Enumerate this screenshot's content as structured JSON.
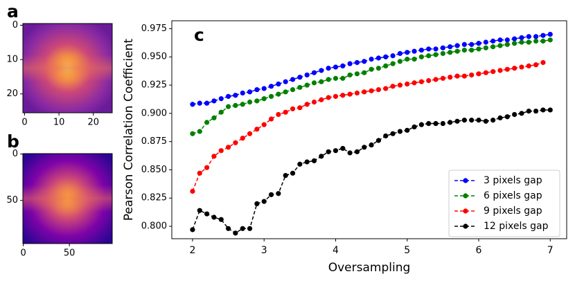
{
  "chart_data": [
    {
      "type": "image",
      "label": "a",
      "xlim": [
        -0.5,
        25.5
      ],
      "ylim": [
        25.5,
        -0.5
      ],
      "xticks": [
        0,
        10,
        20
      ],
      "yticks": [
        0,
        10,
        20
      ]
    },
    {
      "type": "image",
      "label": "b",
      "xlim": [
        -0.5,
        96.5
      ],
      "ylim": [
        96.5,
        -0.5
      ],
      "xticks": [
        0,
        50
      ],
      "yticks": [
        0,
        50
      ]
    },
    {
      "type": "line",
      "label": "c",
      "xlabel": "Oversampling",
      "ylabel": "Pearson Correlation Coefficient",
      "xlim": [
        1.71,
        7.23
      ],
      "ylim": [
        0.789,
        0.982
      ],
      "xticks": [
        2,
        3,
        4,
        5,
        6,
        7
      ],
      "yticks": [
        {
          "value": 0.8,
          "label": "0.800"
        },
        0.825,
        {
          "value": 0.85,
          "label": "0.850"
        },
        0.875,
        {
          "value": 0.9,
          "label": "0.900"
        },
        0.925,
        {
          "value": 0.95,
          "label": "0.950"
        },
        0.975
      ],
      "legend": "lower right",
      "x": [
        2,
        2.1,
        2.2,
        2.3,
        2.4,
        2.5,
        2.6,
        2.7,
        2.8,
        2.9,
        3,
        3.1,
        3.2,
        3.3,
        3.4,
        3.5,
        3.6,
        3.7,
        3.8,
        3.9,
        4,
        4.1,
        4.2,
        4.3,
        4.4,
        4.5,
        4.6,
        4.7,
        4.8,
        4.9,
        5,
        5.1,
        5.2,
        5.3,
        5.4,
        5.5,
        5.6,
        5.7,
        5.8,
        5.9,
        6,
        6.1,
        6.2,
        6.3,
        6.4,
        6.5,
        6.6,
        6.7,
        6.8,
        6.9,
        7
      ],
      "series": [
        {
          "name": "3 pixels gap",
          "color": "#0000ff",
          "values": [
            0.908,
            0.909,
            0.909,
            0.911,
            0.913,
            0.915,
            0.916,
            0.918,
            0.919,
            0.921,
            0.922,
            0.924,
            0.926,
            0.928,
            0.93,
            0.932,
            0.934,
            0.936,
            0.938,
            0.94,
            0.941,
            0.942,
            0.944,
            0.945,
            0.946,
            0.948,
            0.949,
            0.95,
            0.951,
            0.953,
            0.954,
            0.955,
            0.956,
            0.957,
            0.957,
            0.958,
            0.959,
            0.96,
            0.961,
            0.961,
            0.962,
            0.963,
            0.964,
            0.965,
            0.965,
            0.966,
            0.967,
            0.968,
            0.968,
            0.969,
            0.97
          ]
        },
        {
          "name": "6 pixels gap",
          "color": "#008000",
          "values": [
            0.882,
            0.884,
            0.892,
            0.896,
            0.901,
            0.906,
            0.907,
            0.908,
            0.91,
            0.911,
            0.913,
            0.915,
            0.917,
            0.919,
            0.921,
            0.923,
            0.925,
            0.927,
            0.928,
            0.93,
            0.931,
            0.931,
            0.934,
            0.935,
            0.936,
            0.939,
            0.94,
            0.942,
            0.944,
            0.946,
            0.948,
            0.948,
            0.95,
            0.951,
            0.952,
            0.953,
            0.954,
            0.955,
            0.956,
            0.956,
            0.957,
            0.958,
            0.959,
            0.96,
            0.961,
            0.962,
            0.963,
            0.963,
            0.964,
            0.964,
            0.965
          ]
        },
        {
          "name": "9 pixels gap",
          "color": "#ff0000",
          "values": [
            0.831,
            0.847,
            0.852,
            0.862,
            0.867,
            0.87,
            0.874,
            0.878,
            0.882,
            0.886,
            0.89,
            0.895,
            0.899,
            0.901,
            0.904,
            0.905,
            0.908,
            0.91,
            0.912,
            0.914,
            0.915,
            0.916,
            0.917,
            0.918,
            0.919,
            0.92,
            0.921,
            0.922,
            0.924,
            0.925,
            0.926,
            0.927,
            0.928,
            0.929,
            0.93,
            0.931,
            0.932,
            0.933,
            0.933,
            0.934,
            0.935,
            0.936,
            0.937,
            0.938,
            0.939,
            0.94,
            0.941,
            0.942,
            0.943,
            0.945,
            null
          ]
        },
        {
          "name": "12 pixels gap",
          "color": "#000000",
          "values": [
            0.797,
            0.814,
            0.811,
            0.808,
            0.806,
            0.798,
            0.794,
            0.798,
            0.798,
            0.82,
            0.822,
            0.828,
            0.829,
            0.845,
            0.847,
            0.855,
            0.857,
            0.858,
            0.862,
            0.866,
            0.867,
            0.869,
            0.865,
            0.866,
            0.87,
            0.872,
            0.876,
            0.88,
            0.882,
            0.884,
            0.885,
            0.888,
            0.89,
            0.891,
            0.891,
            0.891,
            0.892,
            0.893,
            0.894,
            0.894,
            0.894,
            0.893,
            0.894,
            0.896,
            0.897,
            0.899,
            0.9,
            0.902,
            0.902,
            0.903,
            0.903
          ]
        }
      ]
    }
  ]
}
